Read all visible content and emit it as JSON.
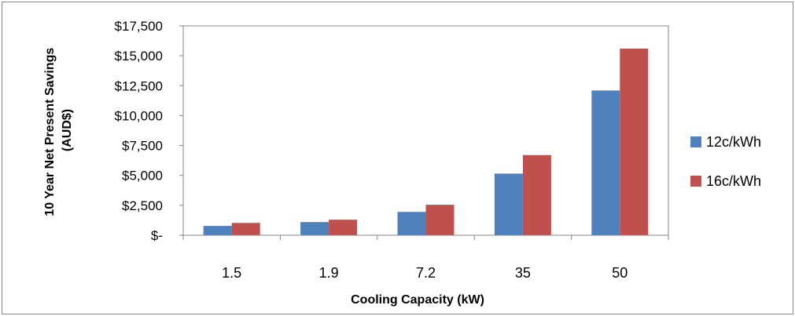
{
  "chart_data": {
    "type": "bar",
    "categories": [
      "1.5",
      "1.9",
      "7.2",
      "35",
      "50"
    ],
    "series": [
      {
        "name": "12c/kWh",
        "color": "#4f81bd",
        "values": [
          780,
          1100,
          1950,
          5150,
          12100
        ]
      },
      {
        "name": "16c/kWh",
        "color": "#c0504d",
        "values": [
          1030,
          1300,
          2550,
          6700,
          15600
        ]
      }
    ],
    "yticks": [
      "$-",
      "$2,500",
      "$5,000",
      "$7,500",
      "$10,000",
      "$12,500",
      "$15,000",
      "$17,500"
    ],
    "xlabel": "Cooling Capacity (kW)",
    "ylabel_lines": [
      "10 Year Net Present Savings",
      "(AUD$)"
    ],
    "ylim": [
      0,
      17500
    ],
    "grid": false,
    "legend_position": "right"
  }
}
